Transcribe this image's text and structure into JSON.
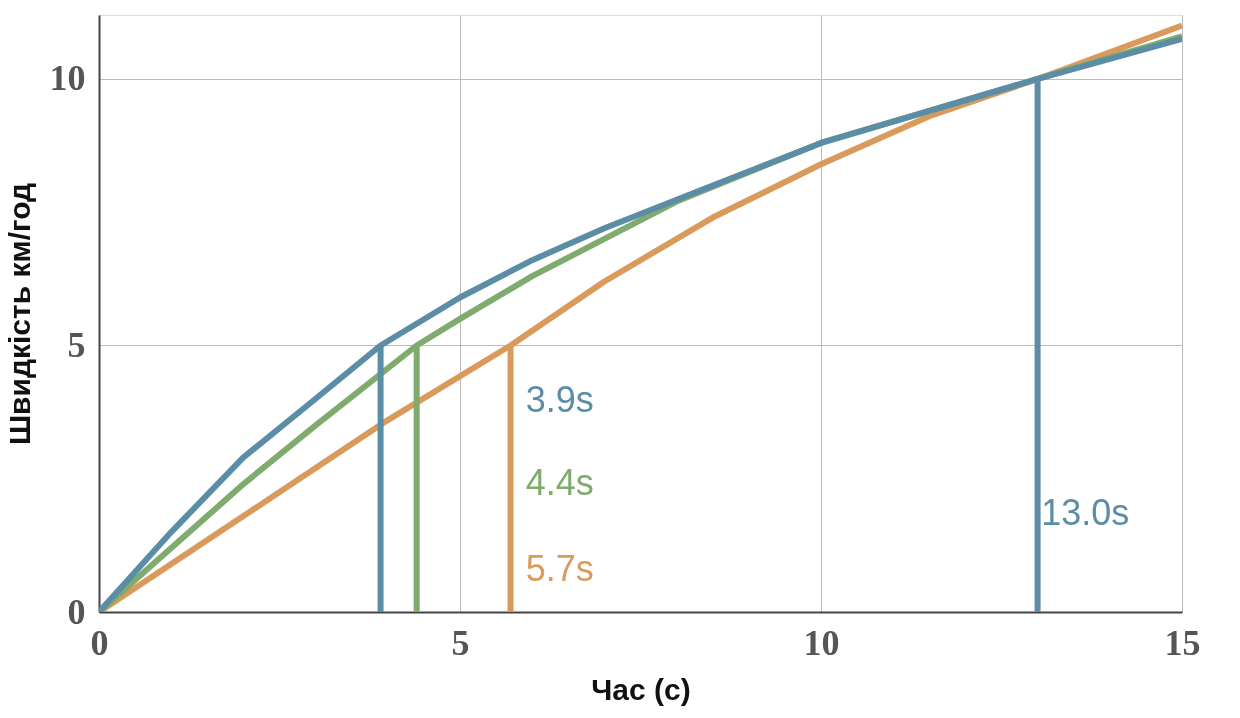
{
  "chart_data": {
    "type": "line",
    "xlabel": "Час (с)",
    "ylabel": "Швидкість км/год",
    "xlim": [
      0,
      15
    ],
    "ylim": [
      0,
      11.2
    ],
    "xticks": [
      0,
      5,
      10,
      15
    ],
    "yticks": [
      0,
      5,
      10
    ],
    "grid": true,
    "line_style": "solid",
    "marker": "none",
    "series": [
      {
        "color": "#d99a5b",
        "x": [
          0,
          1,
          2,
          3,
          4,
          5.7,
          7,
          8.5,
          10,
          11.5,
          13,
          15
        ],
        "values": [
          0,
          0.9,
          1.8,
          2.7,
          3.6,
          5.0,
          6.2,
          7.4,
          8.4,
          9.3,
          10.0,
          11.0
        ]
      },
      {
        "color": "#7fab6e",
        "x": [
          0,
          1,
          2,
          3,
          4.4,
          5,
          6,
          7,
          8,
          10,
          11.5,
          13,
          15
        ],
        "values": [
          0,
          1.2,
          2.4,
          3.5,
          5.0,
          5.5,
          6.3,
          7.0,
          7.7,
          8.8,
          9.4,
          10.0,
          10.8
        ]
      },
      {
        "color": "#5b8ea6",
        "x": [
          0,
          1,
          2,
          3,
          3.9,
          5,
          6,
          7,
          8.5,
          10,
          11.5,
          13,
          15
        ],
        "values": [
          0,
          1.5,
          2.9,
          4.0,
          5.0,
          5.9,
          6.6,
          7.2,
          8.0,
          8.8,
          9.4,
          10.0,
          10.75
        ]
      },
      {
        "color": "#5b8ea6",
        "x": [
          3.9,
          3.9
        ],
        "values": [
          0,
          5.0
        ]
      },
      {
        "color": "#7fab6e",
        "x": [
          4.4,
          4.4
        ],
        "values": [
          0,
          5.0
        ]
      },
      {
        "color": "#d99a5b",
        "x": [
          5.7,
          5.7
        ],
        "values": [
          0,
          5.0
        ]
      },
      {
        "color": "#5b8ea6",
        "x": [
          13.0,
          13.0
        ],
        "values": [
          0,
          10.0
        ]
      }
    ],
    "annotations": [
      "3.9s",
      "4.4s",
      "5.7s",
      "13.0s"
    ]
  }
}
